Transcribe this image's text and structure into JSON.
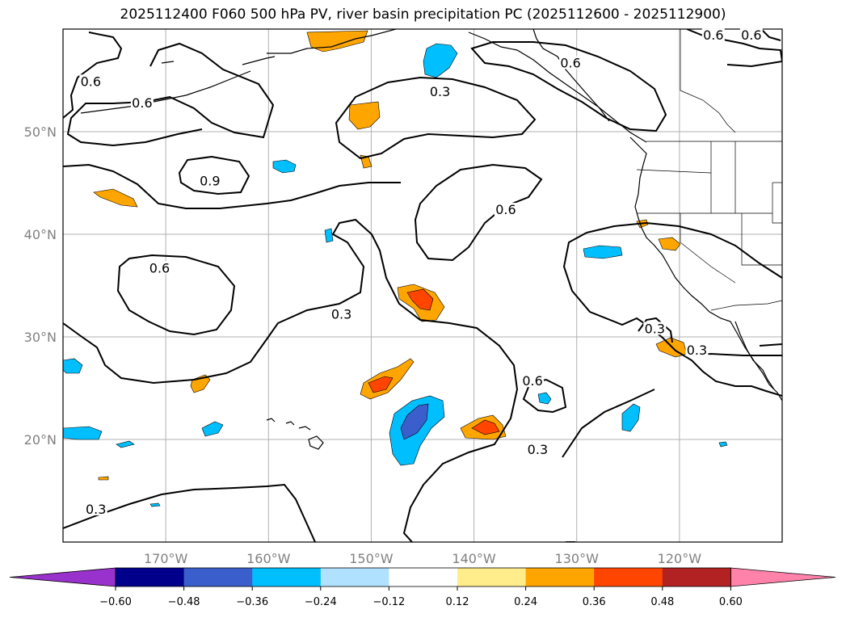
{
  "title": "2025112400 F060 500 hPa PV, river basin precipitation PC (2025112600 - 2025112900)",
  "map": {
    "lon_range": [
      -180,
      -110
    ],
    "lat_range": [
      10,
      60
    ],
    "lat_labels": [
      {
        "lat": 50,
        "text": "50°N"
      },
      {
        "lat": 40,
        "text": "40°N"
      },
      {
        "lat": 30,
        "text": "30°N"
      },
      {
        "lat": 20,
        "text": "20°N"
      }
    ],
    "lon_labels": [
      {
        "lon": -170,
        "text": "170°W"
      },
      {
        "lon": -160,
        "text": "160°W"
      },
      {
        "lon": -150,
        "text": "150°W"
      },
      {
        "lon": -140,
        "text": "140°W"
      },
      {
        "lon": -130,
        "text": "130°W"
      },
      {
        "lon": -120,
        "text": "120°W"
      }
    ],
    "contour_labels": [
      {
        "text": "0.6",
        "lon": -177.3,
        "lat": 54.7
      },
      {
        "text": "0.6",
        "lon": -172.3,
        "lat": 52.6
      },
      {
        "text": "0.9",
        "lon": -165.7,
        "lat": 45.0
      },
      {
        "text": "0.6",
        "lon": -170.6,
        "lat": 36.5
      },
      {
        "text": "0.3",
        "lon": -152.9,
        "lat": 32.0
      },
      {
        "text": "0.3",
        "lon": -143.3,
        "lat": 53.7
      },
      {
        "text": "0.6",
        "lon": -136.9,
        "lat": 42.2
      },
      {
        "text": "0.6",
        "lon": -130.6,
        "lat": 56.5
      },
      {
        "text": "0.6",
        "lon": -116.7,
        "lat": 59.2
      },
      {
        "text": "0.6",
        "lon": -113.0,
        "lat": 59.2
      },
      {
        "text": "0.6",
        "lon": -134.3,
        "lat": 25.5
      },
      {
        "text": "0.3",
        "lon": -133.8,
        "lat": 18.8
      },
      {
        "text": "0.3",
        "lon": -122.4,
        "lat": 30.6
      },
      {
        "text": "0.3",
        "lon": -118.3,
        "lat": 28.5
      },
      {
        "text": "0.3",
        "lon": -176.8,
        "lat": 13.0
      }
    ]
  },
  "colorbar": {
    "ticks": [
      "−0.60",
      "−0.48",
      "−0.36",
      "−0.24",
      "−0.12",
      "0.12",
      "0.24",
      "0.36",
      "0.48",
      "0.60"
    ],
    "colors": {
      "under": "#9932cc",
      "levels": [
        "#00008b",
        "#3a5fcd",
        "#00bfff",
        "#b0e2ff",
        "#ffffff",
        "#ffec8b",
        "#ffa500",
        "#ff4500",
        "#b22222"
      ],
      "over": "#ff82ab"
    }
  }
}
